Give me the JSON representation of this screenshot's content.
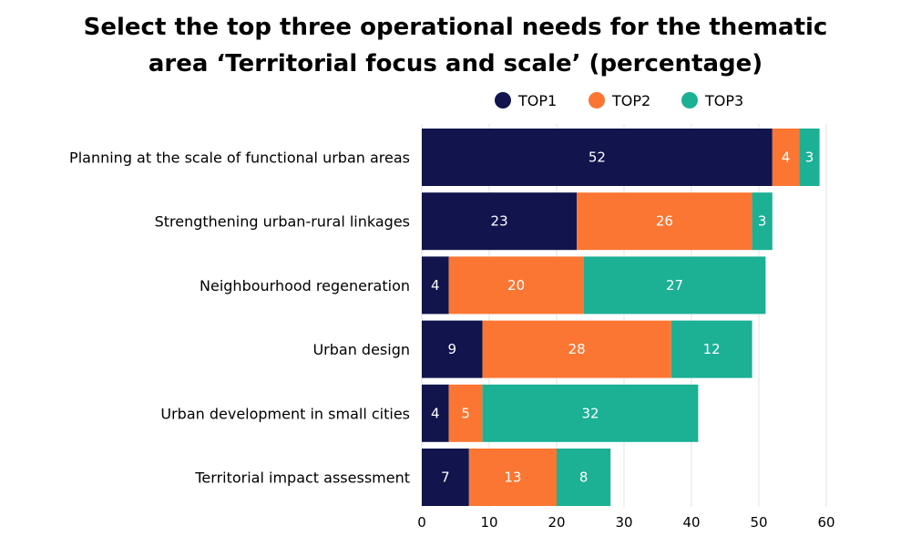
{
  "chart_data": {
    "type": "bar",
    "orientation": "horizontal",
    "stacked": true,
    "title_lines": [
      "Select the top three operational needs for the thematic",
      "area ‘Territorial focus and scale’ (percentage)"
    ],
    "categories": [
      "Planning at the scale of functional urban areas",
      "Strengthening urban-rural linkages",
      "Neighbourhood regeneration",
      "Urban design",
      "Urban development in small cities",
      "Territorial impact assessment"
    ],
    "series": [
      {
        "name": "TOP1",
        "color": "#11144d",
        "values": [
          52,
          23,
          4,
          9,
          4,
          7
        ]
      },
      {
        "name": "TOP2",
        "color": "#fb7633",
        "values": [
          4,
          26,
          20,
          28,
          5,
          13
        ]
      },
      {
        "name": "TOP3",
        "color": "#1cb095",
        "values": [
          3,
          3,
          27,
          12,
          32,
          8
        ]
      }
    ],
    "xlim": [
      0,
      60
    ],
    "xticks": [
      0,
      10,
      20,
      30,
      40,
      50,
      60
    ],
    "xlabel": "",
    "ylabel": "",
    "grid": "vertical",
    "legend": "top-right",
    "label_color": "#ffffff",
    "grid_color": "#e3e3e3"
  }
}
